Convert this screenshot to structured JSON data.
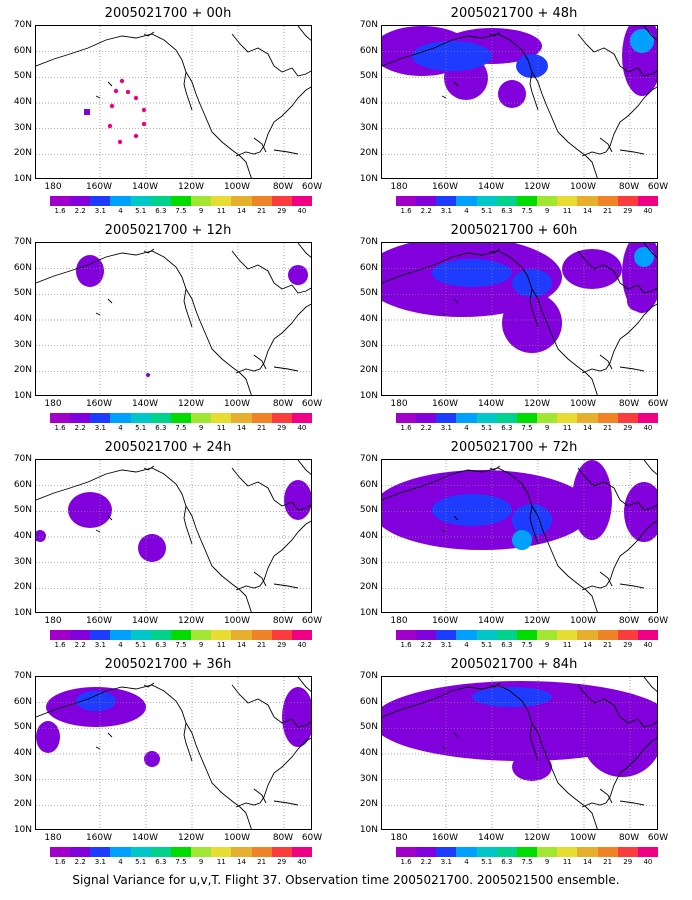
{
  "footer": "Signal Variance for u,v,T. Flight 37. Observation time 2005021700. 2005021500 ensemble.",
  "panels": [
    {
      "title": "2005021700 + 00h"
    },
    {
      "title": "2005021700 + 48h"
    },
    {
      "title": "2005021700 + 12h"
    },
    {
      "title": "2005021700 + 60h"
    },
    {
      "title": "2005021700 + 24h"
    },
    {
      "title": "2005021700 + 72h"
    },
    {
      "title": "2005021700 + 36h"
    },
    {
      "title": "2005021700 + 84h"
    }
  ],
  "map": {
    "lon_range": [
      170,
      300
    ],
    "lat_range": [
      10,
      70
    ],
    "lat_ticks": [
      "70N",
      "60N",
      "50N",
      "40N",
      "30N",
      "20N",
      "10N"
    ],
    "lon_ticks": [
      "180",
      "160W",
      "140W",
      "120W",
      "100W",
      "80W",
      "60W"
    ],
    "colorbar_labels": [
      "1.6",
      "2.2",
      "3.1",
      "4",
      "5.1",
      "6.3",
      "7.5",
      "9",
      "11",
      "14",
      "21",
      "29",
      "40"
    ],
    "colorbar_colors": [
      "#a000c8",
      "#8200dc",
      "#1e3cff",
      "#00a0ff",
      "#00c8c8",
      "#00d28c",
      "#00dc00",
      "#a0e632",
      "#e6dc32",
      "#e6af2d",
      "#f08228",
      "#fa3c3c",
      "#f00082"
    ]
  }
}
